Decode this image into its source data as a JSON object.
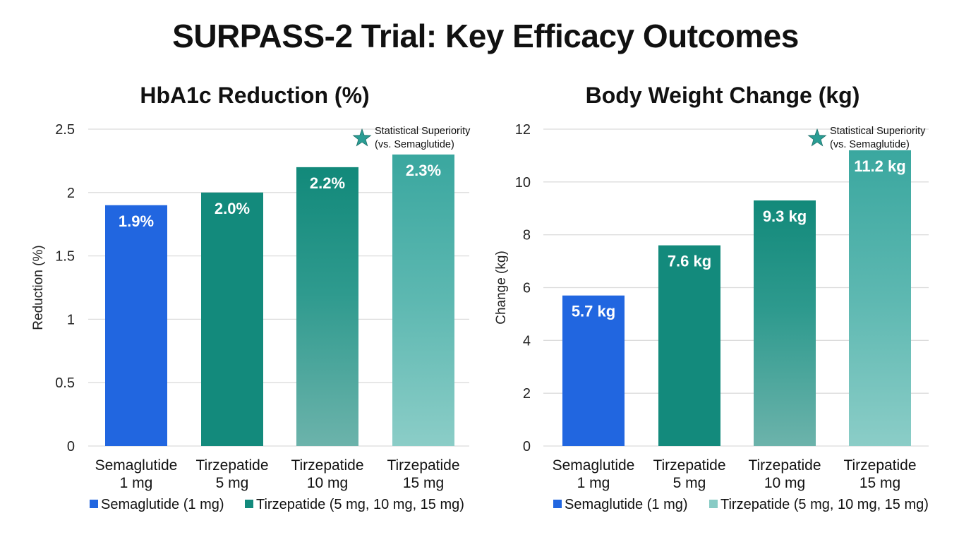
{
  "title": "SURPASS-2 Trial: Key Efficacy Outcomes",
  "colors": {
    "semaglutide": "#2166e0",
    "tirzepatide_dark": "#138a7c",
    "tirzepatide_light": "#88cbc5",
    "star": "#2a9d94"
  },
  "chart_data": [
    {
      "type": "bar",
      "title": "HbA1c Reduction (%)",
      "xlabel": "",
      "ylabel": "Reduction (%)",
      "ylim": [
        0,
        2.5
      ],
      "yticks": [
        0,
        0.5,
        1,
        1.5,
        2,
        2.5
      ],
      "ytick_labels": [
        "0",
        "0.5",
        "1",
        "1.5",
        "2",
        "2.5"
      ],
      "grid": true,
      "categories": [
        {
          "line1": "Semaglutide",
          "line2": "1 mg"
        },
        {
          "line1": "Tirzepatide",
          "line2": "5 mg"
        },
        {
          "line1": "Tirzepatide",
          "line2": "10 mg"
        },
        {
          "line1": "Tirzepatide",
          "line2": "15 mg"
        }
      ],
      "values": [
        1.9,
        2.0,
        2.2,
        2.3
      ],
      "data_labels": [
        "1.9%",
        "2.0%",
        "2.2%",
        "2.3%"
      ],
      "bar_styles": [
        "semaglutide",
        "tirz-solid",
        "tirz-grad-mid",
        "tirz-grad-light"
      ],
      "annotation": {
        "icon": "star-icon",
        "line1": "Statistical Superiority",
        "line2": "(vs. Semaglutide)",
        "position": "top-right"
      },
      "legend": {
        "placement": "bottom",
        "items": [
          {
            "label": "Semaglutide (1 mg)",
            "color": "#2166e0"
          },
          {
            "label": "Tirzepatide (5 mg, 10 mg, 15 mg)",
            "color": "#138a7c"
          }
        ]
      }
    },
    {
      "type": "bar",
      "title": "Body Weight Change (kg)",
      "xlabel": "",
      "ylabel": "Change (kg)",
      "ylim": [
        0,
        12
      ],
      "yticks": [
        0,
        2,
        4,
        6,
        8,
        10,
        12
      ],
      "ytick_labels": [
        "0",
        "2",
        "4",
        "6",
        "8",
        "10",
        "12"
      ],
      "grid": true,
      "categories": [
        {
          "line1": "Semaglutide",
          "line2": "1 mg"
        },
        {
          "line1": "Tirzepatide",
          "line2": "5 mg"
        },
        {
          "line1": "Tirzepatide",
          "line2": "10 mg"
        },
        {
          "line1": "Tirzepatide",
          "line2": "15 mg"
        }
      ],
      "values": [
        5.7,
        7.6,
        9.3,
        11.2
      ],
      "data_labels": [
        "5.7 kg",
        "7.6 kg",
        "9.3 kg",
        "11.2 kg"
      ],
      "bar_styles": [
        "semaglutide",
        "tirz-solid",
        "tirz-grad-mid",
        "tirz-grad-light"
      ],
      "annotation": {
        "icon": "star-icon",
        "line1": "Statistical Superiority",
        "line2": "(vs. Semaglutide)",
        "position": "top-right"
      },
      "legend": {
        "placement": "bottom",
        "items": [
          {
            "label": "Semaglutide (1 mg)",
            "color": "#2166e0"
          },
          {
            "label": "Tirzepatide (5 mg, 10 mg, 15 mg)",
            "color": "#88cbc5"
          }
        ]
      }
    }
  ]
}
